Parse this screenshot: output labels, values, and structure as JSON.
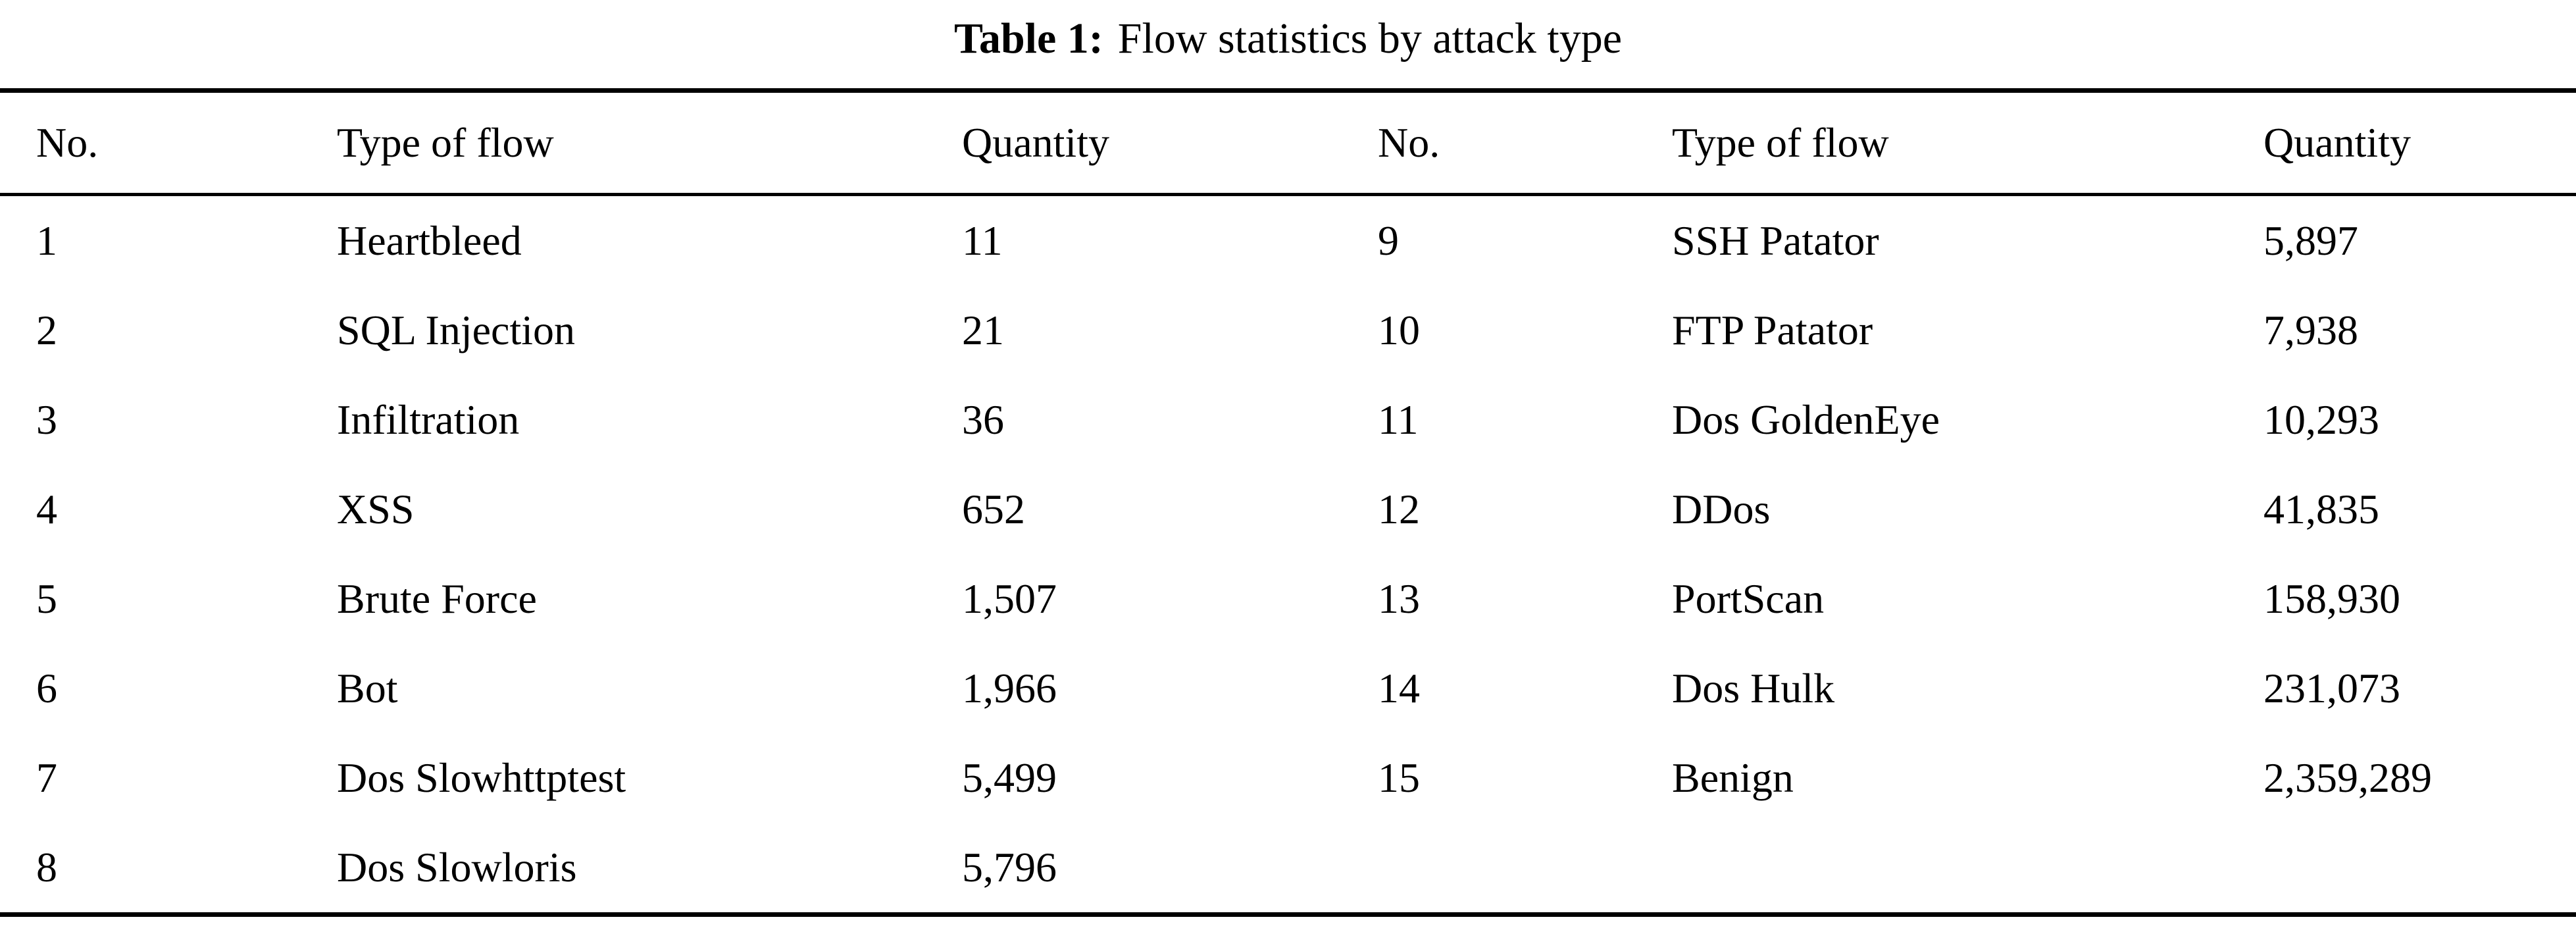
{
  "caption": {
    "label": "Table 1:",
    "text": "Flow statistics by attack type"
  },
  "table": {
    "headers": [
      "No.",
      "Type of flow",
      "Quantity",
      "No.",
      "Type of flow",
      "Quantity"
    ],
    "rows": [
      [
        "1",
        "Heartbleed",
        "11",
        "9",
        "SSH Patator",
        "5,897"
      ],
      [
        "2",
        "SQL Injection",
        "21",
        "10",
        "FTP Patator",
        "7,938"
      ],
      [
        "3",
        "Infiltration",
        "36",
        "11",
        "Dos GoldenEye",
        "10,293"
      ],
      [
        "4",
        "XSS",
        "652",
        "12",
        "DDos",
        "41,835"
      ],
      [
        "5",
        "Brute Force",
        "1,507",
        "13",
        "PortScan",
        "158,930"
      ],
      [
        "6",
        "Bot",
        "1,966",
        "14",
        "Dos Hulk",
        "231,073"
      ],
      [
        "7",
        "Dos Slowhttptest",
        "5,499",
        "15",
        "Benign",
        "2,359,289"
      ],
      [
        "8",
        "Dos Slowloris",
        "5,796",
        "",
        "",
        ""
      ]
    ]
  }
}
